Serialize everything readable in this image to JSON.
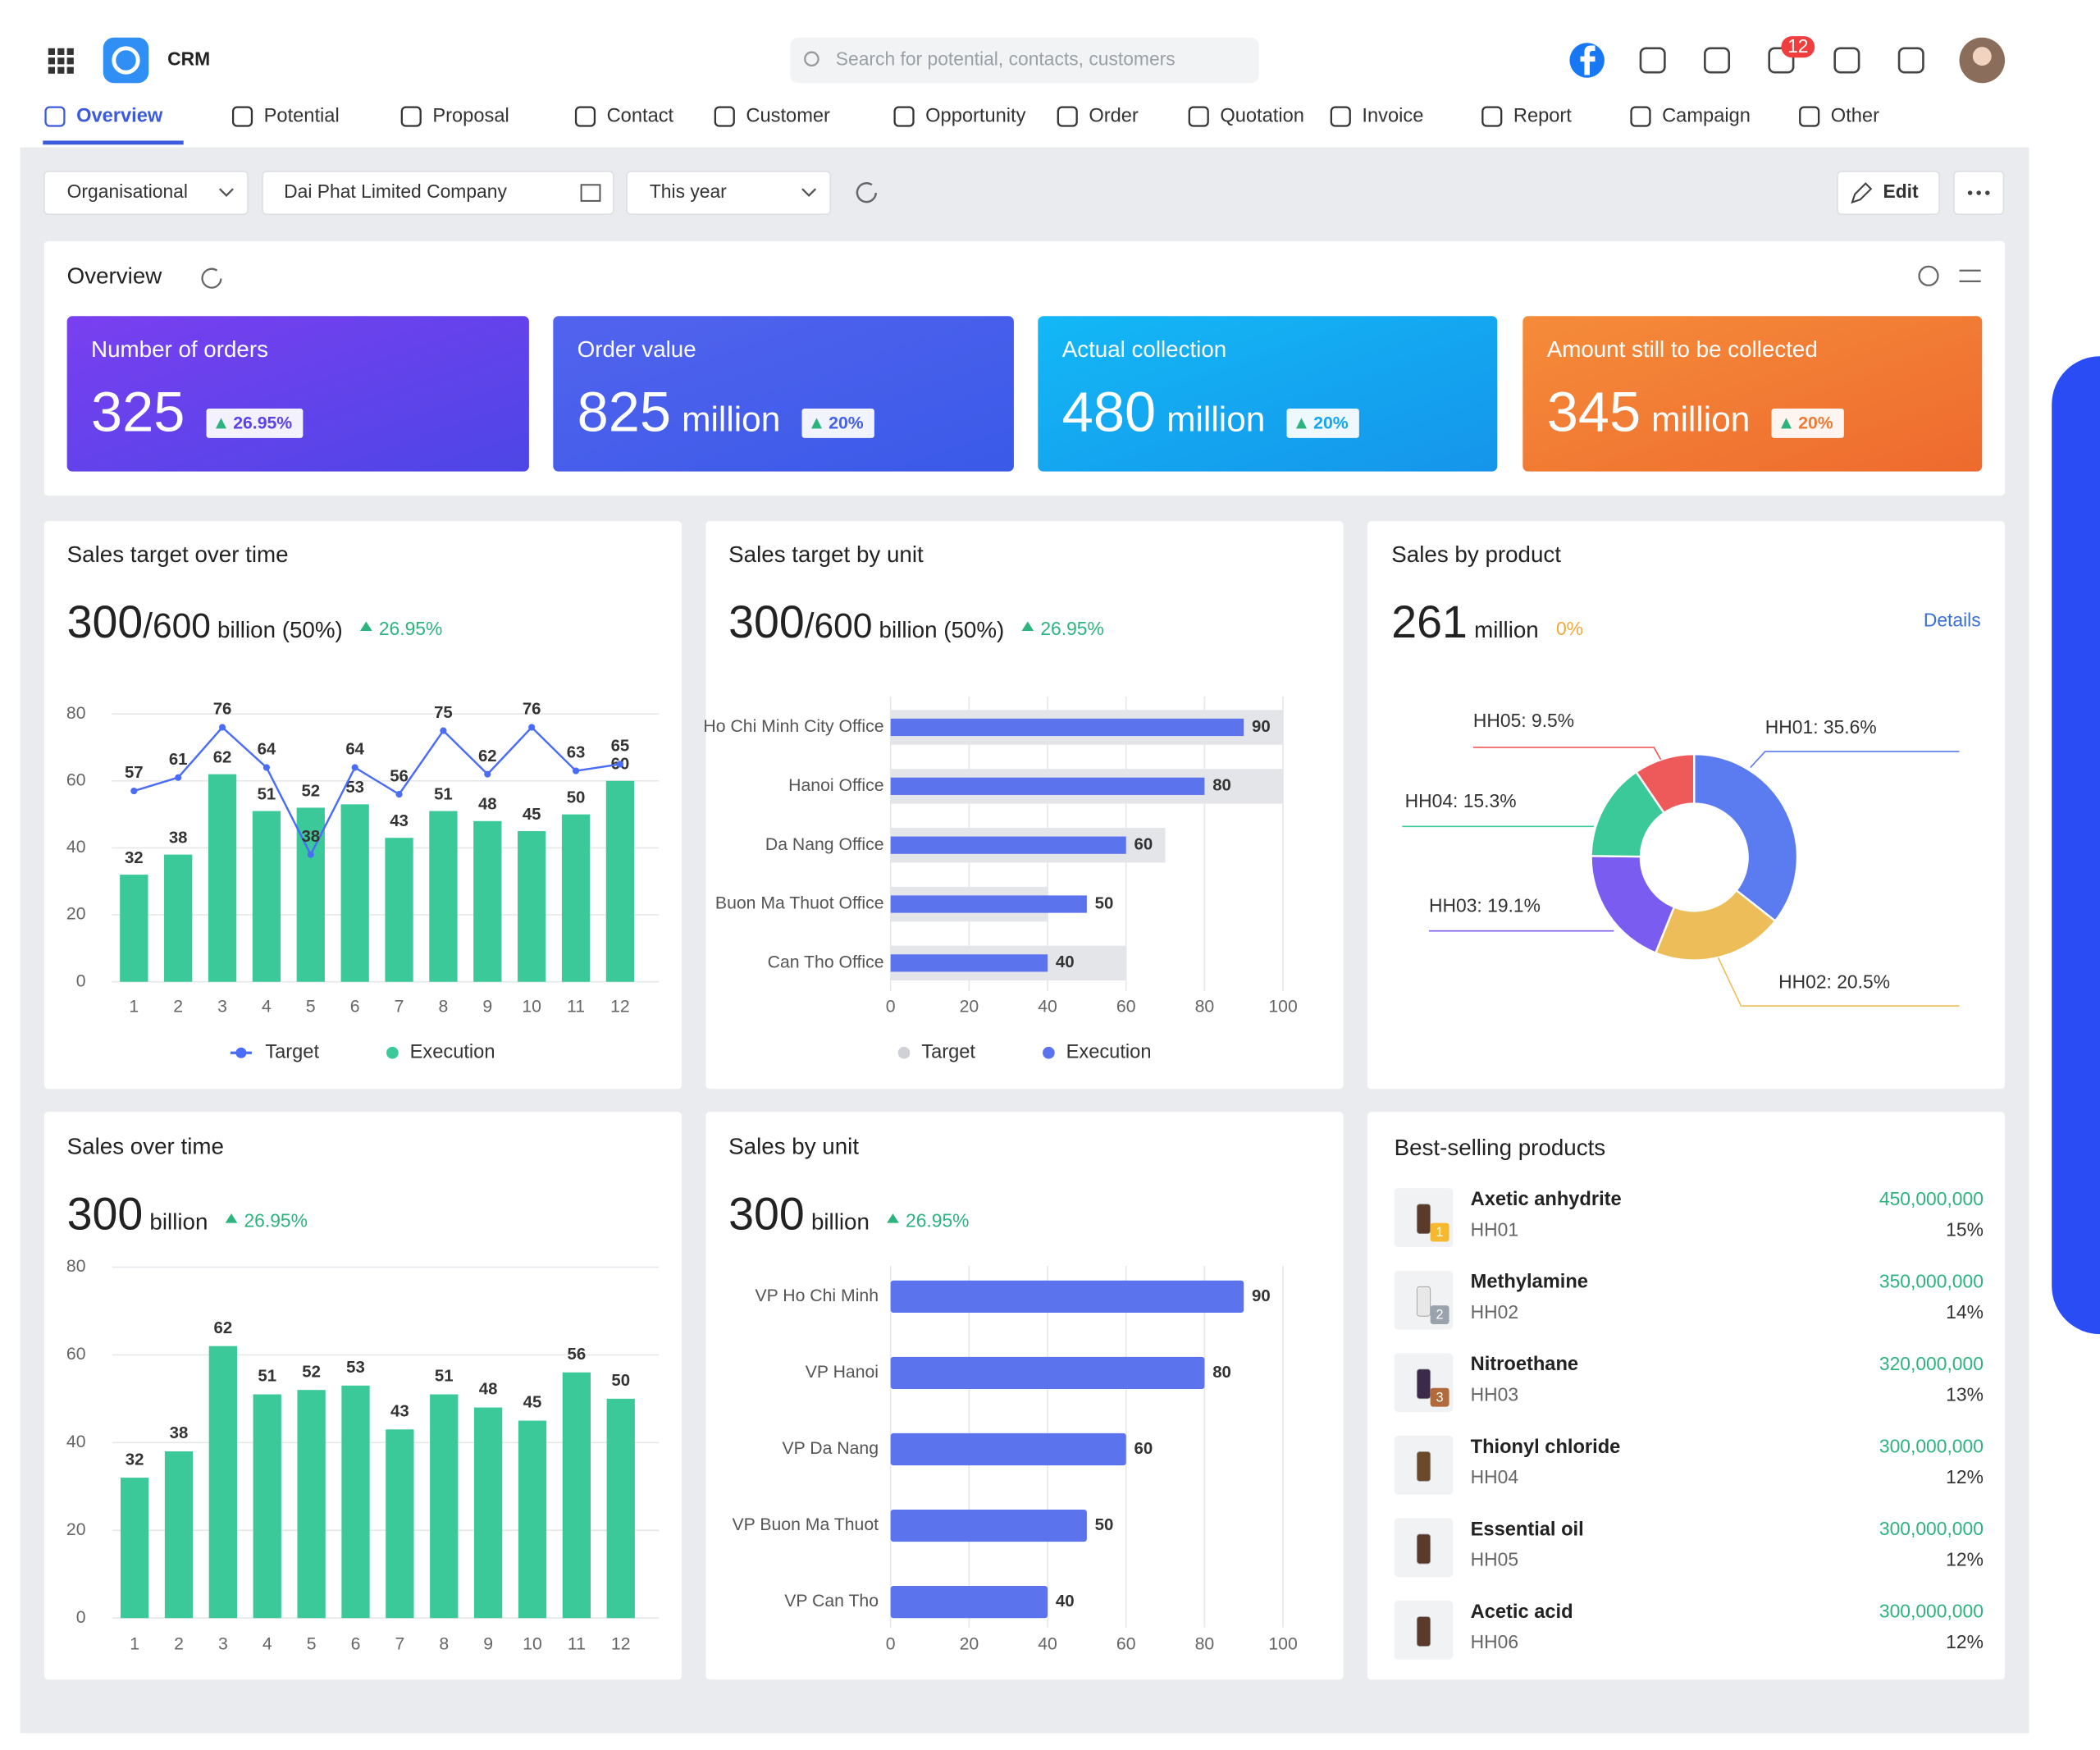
{
  "header": {
    "app_name": "CRM",
    "search_placeholder": "Search for potential, contacts, customers",
    "notification_count": "12"
  },
  "nav": [
    "Overview",
    "Potential",
    "Proposal",
    "Contact",
    "Customer",
    "Opportunity",
    "Order",
    "Quotation",
    "Invoice",
    "Report",
    "Campaign",
    "Other"
  ],
  "filters": {
    "scope": "Organisational",
    "company": "Dai Phat Limited Company",
    "period": "This year",
    "edit": "Edit"
  },
  "overview": {
    "title": "Overview",
    "cards": [
      {
        "title": "Number of orders",
        "value": "325",
        "change": "26.95%"
      },
      {
        "title": "Order value",
        "value": "825",
        "unit": "million",
        "change": "20%"
      },
      {
        "title": "Actual collection",
        "value": "480",
        "unit": "million",
        "change": "20%"
      },
      {
        "title": "Amount still to be collected",
        "value": "345",
        "unit": "million",
        "change": "20%"
      }
    ]
  },
  "chart_data": [
    {
      "type": "combo",
      "title": "Sales target over time",
      "headline": {
        "value": "300",
        "target": "/600",
        "unit": "billion (50%)",
        "change": "26.95%"
      },
      "categories": [
        "1",
        "2",
        "3",
        "4",
        "5",
        "6",
        "7",
        "8",
        "9",
        "10",
        "11",
        "12"
      ],
      "series": [
        {
          "name": "Target",
          "type": "line",
          "color": "#4a6cf7",
          "values": [
            57,
            61,
            76,
            64,
            38,
            64,
            56,
            75,
            62,
            76,
            63,
            65
          ]
        },
        {
          "name": "Execution",
          "type": "bar",
          "color": "#3cc99a",
          "values": [
            32,
            38,
            62,
            51,
            52,
            53,
            43,
            51,
            48,
            45,
            50,
            60
          ]
        }
      ],
      "ylim": [
        0,
        80
      ],
      "yticks": [
        0,
        20,
        40,
        60,
        80
      ],
      "grid": true
    },
    {
      "type": "barh",
      "title": "Sales target by unit",
      "headline": {
        "value": "300",
        "target": "/600",
        "unit": "billion (50%)",
        "change": "26.95%"
      },
      "categories": [
        "Ho Chi Minh City Office",
        "Hanoi Office",
        "Da Nang Office",
        "Buon Ma Thuot Office",
        "Can Tho Office"
      ],
      "series": [
        {
          "name": "Target",
          "color": "#e4e5e8",
          "values": [
            100,
            100,
            70,
            40,
            60
          ]
        },
        {
          "name": "Execution",
          "color": "#5b74ee",
          "values": [
            90,
            80,
            60,
            50,
            40
          ]
        }
      ],
      "xlim": [
        0,
        100
      ],
      "xticks": [
        0,
        20,
        40,
        60,
        80,
        100
      ],
      "grid": true
    },
    {
      "type": "donut",
      "title": "Sales by product",
      "headline": {
        "value": "261",
        "unit": "million",
        "change": "0%"
      },
      "link": "Details",
      "categories": [
        "HH01",
        "HH02",
        "HH03",
        "HH04",
        "HH05"
      ],
      "values": [
        35.6,
        20.5,
        19.1,
        15.3,
        9.5
      ],
      "value_labels": [
        "HH01: 35.6%",
        "HH02: 20.5%",
        "HH03: 19.1%",
        "HH04: 15.3%",
        "HH05: 9.5%"
      ],
      "colors": [
        "#5b7bf0",
        "#ecbd58",
        "#7b5cf0",
        "#3cc99a",
        "#ee5a5a"
      ]
    },
    {
      "type": "bar",
      "title": "Sales over time",
      "headline": {
        "value": "300",
        "unit": "billion",
        "change": "26.95%"
      },
      "categories": [
        "1",
        "2",
        "3",
        "4",
        "5",
        "6",
        "7",
        "8",
        "9",
        "10",
        "11",
        "12"
      ],
      "values": [
        32,
        38,
        62,
        51,
        52,
        53,
        43,
        51,
        48,
        45,
        56,
        50
      ],
      "color": "#3cc99a",
      "ylim": [
        0,
        80
      ],
      "yticks": [
        0,
        20,
        40,
        60,
        80
      ],
      "grid": true
    },
    {
      "type": "barh",
      "title": "Sales by unit",
      "headline": {
        "value": "300",
        "unit": "billion",
        "change": "26.95%"
      },
      "categories": [
        "VP Ho Chi Minh",
        "VP Hanoi",
        "VP Da Nang",
        "VP Buon Ma Thuot",
        "VP Can Tho"
      ],
      "values": [
        90,
        80,
        60,
        50,
        40
      ],
      "color": "#5b74ee",
      "xlim": [
        0,
        100
      ],
      "xticks": [
        0,
        20,
        40,
        60,
        80,
        100
      ],
      "grid": true
    }
  ],
  "best_selling": {
    "title": "Best-selling products",
    "items": [
      {
        "rank": "1",
        "name": "Axetic anhydrite",
        "code": "HH01",
        "amount": "450,000,000",
        "share": "15%"
      },
      {
        "rank": "2",
        "name": "Methylamine",
        "code": "HH02",
        "amount": "350,000,000",
        "share": "14%"
      },
      {
        "rank": "3",
        "name": "Nitroethane",
        "code": "HH03",
        "amount": "320,000,000",
        "share": "13%"
      },
      {
        "name": "Thionyl chloride",
        "code": "HH04",
        "amount": "300,000,000",
        "share": "12%"
      },
      {
        "name": "Essential oil",
        "code": "HH05",
        "amount": "300,000,000",
        "share": "12%"
      },
      {
        "name": "Acetic acid",
        "code": "HH06",
        "amount": "300,000,000",
        "share": "12%"
      }
    ]
  }
}
